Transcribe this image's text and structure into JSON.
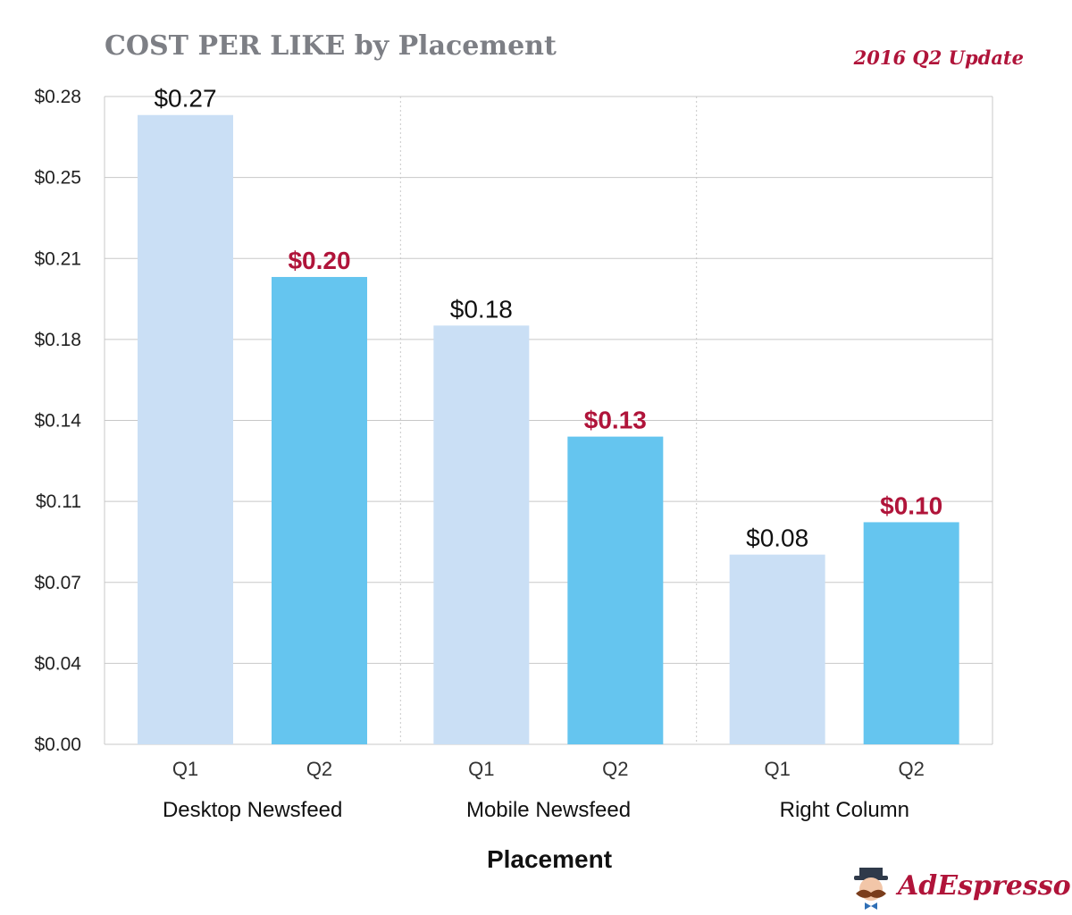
{
  "header": {
    "title": "COST PER LIKE by Placement",
    "badge": "2016 Q2 Update"
  },
  "brand": {
    "name": "AdEspresso",
    "icon": "mustache-mascot-icon"
  },
  "colors": {
    "q1": "#cadff5",
    "q2": "#65c5ef",
    "accent": "#b0143a",
    "grid": "#c8c8c8"
  },
  "chart_data": {
    "type": "bar",
    "title": "COST PER LIKE by Placement",
    "subtitle": "2016 Q2 Update",
    "xlabel": "Placement",
    "ylabel": "",
    "ylim": [
      0,
      0.28
    ],
    "yticks": [
      "$0.00",
      "$0.04",
      "$0.07",
      "$0.11",
      "$0.14",
      "$0.18",
      "$0.21",
      "$0.25",
      "$0.28"
    ],
    "grid": true,
    "groups": [
      {
        "name": "Desktop Newsfeed",
        "bars": [
          {
            "name": "Q1",
            "value": 0.272,
            "label": "$0.27"
          },
          {
            "name": "Q2",
            "value": 0.202,
            "label": "$0.20"
          }
        ]
      },
      {
        "name": "Mobile Newsfeed",
        "bars": [
          {
            "name": "Q1",
            "value": 0.181,
            "label": "$0.18"
          },
          {
            "name": "Q2",
            "value": 0.133,
            "label": "$0.13"
          }
        ]
      },
      {
        "name": "Right Column",
        "bars": [
          {
            "name": "Q1",
            "value": 0.082,
            "label": "$0.08"
          },
          {
            "name": "Q2",
            "value": 0.096,
            "label": "$0.10"
          }
        ]
      }
    ]
  }
}
